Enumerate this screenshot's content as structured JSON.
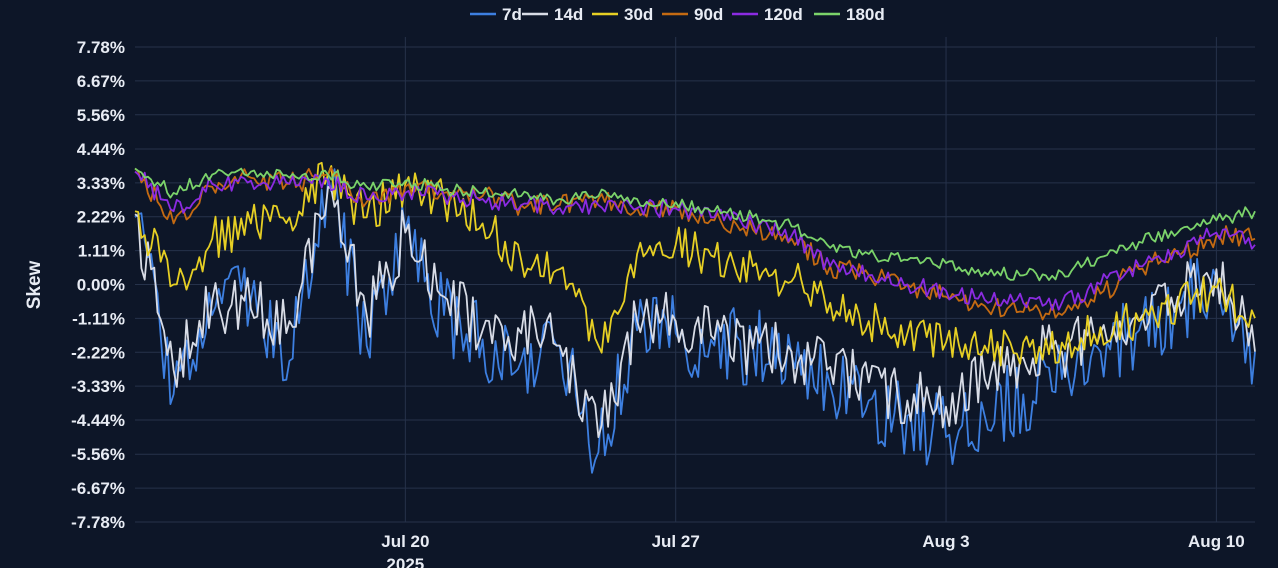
{
  "chart_data": {
    "type": "line",
    "title": "",
    "xlabel": "",
    "ylabel": "Skew",
    "x_ticks": [
      {
        "date": "2025-07-20",
        "label": "Jul 20",
        "sublabel": "2025"
      },
      {
        "date": "2025-07-27",
        "label": "Jul 27",
        "sublabel": ""
      },
      {
        "date": "2025-08-03",
        "label": "Aug 3",
        "sublabel": ""
      },
      {
        "date": "2025-08-10",
        "label": "Aug 10",
        "sublabel": ""
      }
    ],
    "y_ticks": [
      "7.78%",
      "6.67%",
      "5.56%",
      "4.44%",
      "3.33%",
      "2.22%",
      "1.11%",
      "0.00%",
      "-1.11%",
      "-2.22%",
      "-3.33%",
      "-4.44%",
      "-5.56%",
      "-6.67%",
      "-7.78%"
    ],
    "ylim": [
      -7.78,
      7.78
    ],
    "xlim": [
      "2025-07-13",
      "2025-08-11"
    ],
    "grid": true,
    "legend_position": "top",
    "series": [
      {
        "name": "7d",
        "color": "#3d7fe0",
        "x": [
          "2025-07-13",
          "2025-07-14",
          "2025-07-15",
          "2025-07-16",
          "2025-07-17",
          "2025-07-18",
          "2025-07-19",
          "2025-07-20",
          "2025-07-21",
          "2025-07-22",
          "2025-07-23",
          "2025-07-24",
          "2025-07-25",
          "2025-07-26",
          "2025-07-27",
          "2025-07-28",
          "2025-07-29",
          "2025-07-30",
          "2025-07-31",
          "2025-08-01",
          "2025-08-02",
          "2025-08-03",
          "2025-08-04",
          "2025-08-05",
          "2025-08-06",
          "2025-08-07",
          "2025-08-08",
          "2025-08-09",
          "2025-08-10",
          "2025-08-11"
        ],
        "y": [
          2.2,
          -3.6,
          -1.0,
          -0.5,
          -2.5,
          3.5,
          -2.0,
          1.8,
          -1.0,
          -1.8,
          -2.5,
          -2.0,
          -5.5,
          -1.5,
          -1.6,
          -2.0,
          -2.0,
          -2.3,
          -3.3,
          -3.8,
          -4.3,
          -5.0,
          -4.3,
          -3.6,
          -3.1,
          -2.2,
          -1.5,
          -0.7,
          0.2,
          -2.2
        ]
      },
      {
        "name": "14d",
        "color": "#d8dce6",
        "x": [
          "2025-07-13",
          "2025-07-14",
          "2025-07-15",
          "2025-07-16",
          "2025-07-17",
          "2025-07-18",
          "2025-07-19",
          "2025-07-20",
          "2025-07-21",
          "2025-07-22",
          "2025-07-23",
          "2025-07-24",
          "2025-07-25",
          "2025-07-26",
          "2025-07-27",
          "2025-07-28",
          "2025-07-29",
          "2025-07-30",
          "2025-07-31",
          "2025-08-01",
          "2025-08-02",
          "2025-08-03",
          "2025-08-04",
          "2025-08-05",
          "2025-08-06",
          "2025-08-07",
          "2025-08-08",
          "2025-08-09",
          "2025-08-10",
          "2025-08-11"
        ],
        "y": [
          2.3,
          -2.8,
          -0.5,
          -0.8,
          -1.2,
          3.2,
          -1.0,
          1.7,
          -0.4,
          -1.5,
          -1.6,
          -2.0,
          -5.0,
          -1.2,
          -1.2,
          -1.8,
          -2.1,
          -2.2,
          -2.7,
          -3.2,
          -3.8,
          -4.0,
          -3.1,
          -2.4,
          -2.2,
          -1.6,
          -1.2,
          -0.4,
          0.5,
          -2.2
        ]
      },
      {
        "name": "30d",
        "color": "#e6cf24",
        "x": [
          "2025-07-13",
          "2025-07-14",
          "2025-07-15",
          "2025-07-16",
          "2025-07-17",
          "2025-07-18",
          "2025-07-19",
          "2025-07-20",
          "2025-07-21",
          "2025-07-22",
          "2025-07-23",
          "2025-07-24",
          "2025-07-25",
          "2025-07-26",
          "2025-07-27",
          "2025-07-28",
          "2025-07-29",
          "2025-07-30",
          "2025-07-31",
          "2025-08-01",
          "2025-08-02",
          "2025-08-03",
          "2025-08-04",
          "2025-08-05",
          "2025-08-06",
          "2025-08-07",
          "2025-08-08",
          "2025-08-09",
          "2025-08-10",
          "2025-08-11"
        ],
        "y": [
          2.4,
          0.0,
          1.5,
          2.0,
          2.2,
          3.6,
          2.2,
          3.3,
          2.8,
          2.0,
          0.8,
          0.5,
          -2.0,
          1.0,
          1.3,
          0.9,
          0.6,
          0.1,
          -0.6,
          -1.2,
          -1.6,
          -1.9,
          -2.0,
          -1.9,
          -1.9,
          -1.4,
          -1.2,
          -0.6,
          -0.1,
          -1.1
        ]
      },
      {
        "name": "90d",
        "color": "#c46a12",
        "x": [
          "2025-07-13",
          "2025-07-14",
          "2025-07-15",
          "2025-07-16",
          "2025-07-17",
          "2025-07-18",
          "2025-07-19",
          "2025-07-20",
          "2025-07-21",
          "2025-07-22",
          "2025-07-23",
          "2025-07-24",
          "2025-07-25",
          "2025-07-26",
          "2025-07-27",
          "2025-07-28",
          "2025-07-29",
          "2025-07-30",
          "2025-07-31",
          "2025-08-01",
          "2025-08-02",
          "2025-08-03",
          "2025-08-04",
          "2025-08-05",
          "2025-08-06",
          "2025-08-07",
          "2025-08-08",
          "2025-08-09",
          "2025-08-10",
          "2025-08-11"
        ],
        "y": [
          3.8,
          2.0,
          3.2,
          3.5,
          3.3,
          3.6,
          2.7,
          3.2,
          3.0,
          2.9,
          2.6,
          2.6,
          2.8,
          2.5,
          2.5,
          2.1,
          1.8,
          1.5,
          0.6,
          0.3,
          0.0,
          -0.4,
          -0.7,
          -0.9,
          -1.0,
          -0.3,
          0.5,
          1.0,
          1.6,
          1.5
        ]
      },
      {
        "name": "120d",
        "color": "#8b2be2",
        "x": [
          "2025-07-13",
          "2025-07-14",
          "2025-07-15",
          "2025-07-16",
          "2025-07-17",
          "2025-07-18",
          "2025-07-19",
          "2025-07-20",
          "2025-07-21",
          "2025-07-22",
          "2025-07-23",
          "2025-07-24",
          "2025-07-25",
          "2025-07-26",
          "2025-07-27",
          "2025-07-28",
          "2025-07-29",
          "2025-07-30",
          "2025-07-31",
          "2025-08-01",
          "2025-08-02",
          "2025-08-03",
          "2025-08-04",
          "2025-08-05",
          "2025-08-06",
          "2025-08-07",
          "2025-08-08",
          "2025-08-09",
          "2025-08-10",
          "2025-08-11"
        ],
        "y": [
          3.7,
          2.4,
          3.3,
          3.4,
          3.3,
          3.4,
          2.8,
          3.0,
          2.9,
          2.8,
          2.6,
          2.5,
          2.6,
          2.5,
          2.5,
          2.2,
          2.0,
          1.6,
          0.6,
          0.3,
          0.0,
          -0.2,
          -0.5,
          -0.6,
          -0.6,
          0.0,
          0.6,
          1.1,
          1.7,
          1.3
        ]
      },
      {
        "name": "180d",
        "color": "#7bd36a",
        "x": [
          "2025-07-13",
          "2025-07-14",
          "2025-07-15",
          "2025-07-16",
          "2025-07-17",
          "2025-07-18",
          "2025-07-19",
          "2025-07-20",
          "2025-07-21",
          "2025-07-22",
          "2025-07-23",
          "2025-07-24",
          "2025-07-25",
          "2025-07-26",
          "2025-07-27",
          "2025-07-28",
          "2025-07-29",
          "2025-07-30",
          "2025-07-31",
          "2025-08-01",
          "2025-08-02",
          "2025-08-03",
          "2025-08-04",
          "2025-08-05",
          "2025-08-06",
          "2025-08-07",
          "2025-08-08",
          "2025-08-09",
          "2025-08-10",
          "2025-08-11"
        ],
        "y": [
          3.8,
          3.0,
          3.6,
          3.7,
          3.5,
          3.6,
          3.2,
          3.4,
          3.1,
          3.0,
          2.9,
          2.8,
          2.9,
          2.8,
          2.7,
          2.4,
          2.2,
          1.9,
          1.2,
          1.0,
          0.8,
          0.7,
          0.4,
          0.3,
          0.4,
          0.9,
          1.4,
          1.7,
          2.1,
          2.4
        ]
      }
    ]
  }
}
